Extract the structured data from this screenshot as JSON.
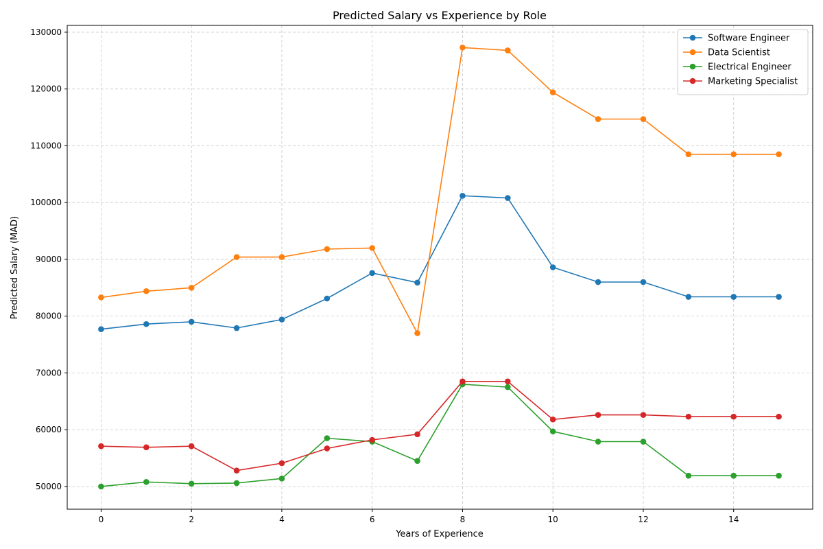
{
  "chart_data": {
    "type": "line",
    "title": "Predicted Salary vs Experience by Role",
    "xlabel": "Years of Experience",
    "ylabel": "Predicted Salary (MAD)",
    "xlim": [
      -0.75,
      15.75
    ],
    "ylim": [
      46000,
      131200
    ],
    "xticks": [
      0,
      2,
      4,
      6,
      8,
      10,
      12,
      14
    ],
    "yticks": [
      50000,
      60000,
      70000,
      80000,
      90000,
      100000,
      110000,
      120000,
      130000
    ],
    "grid": true,
    "legend_position": "top-right",
    "x": [
      0,
      1,
      2,
      3,
      4,
      5,
      6,
      7,
      8,
      9,
      10,
      11,
      12,
      13,
      14,
      15
    ],
    "series": [
      {
        "name": "Software Engineer",
        "color": "#1f77b4",
        "values": [
          77700,
          78600,
          79000,
          77900,
          79400,
          83100,
          87600,
          85900,
          101200,
          100800,
          88600,
          86000,
          86000,
          83400,
          83400,
          83400
        ]
      },
      {
        "name": "Data Scientist",
        "color": "#ff7f0e",
        "values": [
          83300,
          84400,
          85000,
          90400,
          90400,
          91800,
          92000,
          77000,
          127300,
          126800,
          119400,
          114700,
          114700,
          108500,
          108500,
          108500
        ]
      },
      {
        "name": "Electrical Engineer",
        "color": "#2ca02c",
        "values": [
          50000,
          50800,
          50500,
          50600,
          51400,
          58500,
          57900,
          54500,
          68000,
          67500,
          59700,
          57900,
          57900,
          51900,
          51900,
          51900
        ]
      },
      {
        "name": "Marketing Specialist",
        "color": "#d62728",
        "values": [
          57100,
          56900,
          57100,
          52800,
          54100,
          56700,
          58200,
          59200,
          68500,
          68500,
          61800,
          62600,
          62600,
          62300,
          62300,
          62300
        ]
      }
    ]
  }
}
